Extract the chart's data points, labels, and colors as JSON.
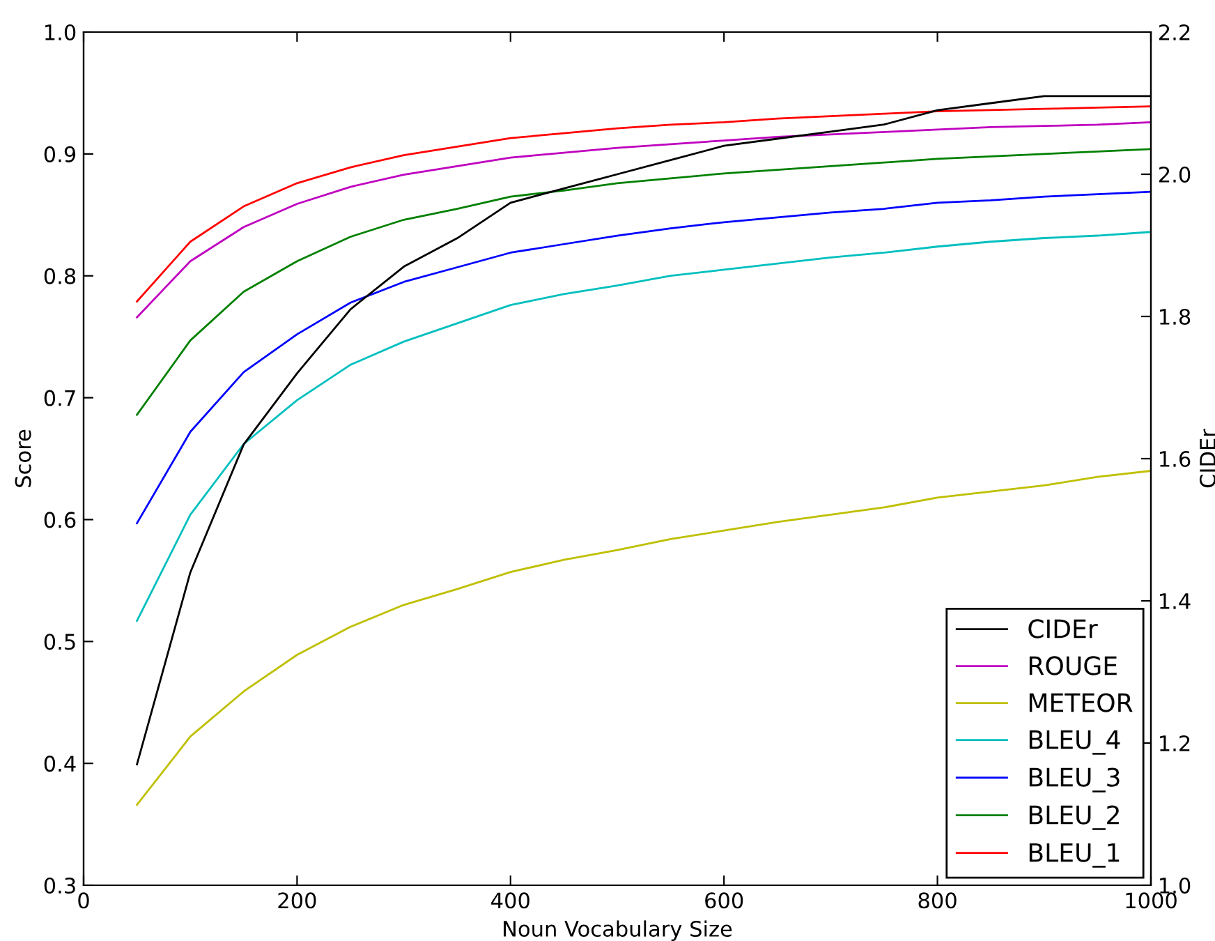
{
  "chart_data": {
    "type": "line",
    "xlabel": "Noun Vocabulary Size",
    "ylabel": "Score",
    "y2label": "CIDEr",
    "x": [
      50,
      100,
      150,
      200,
      250,
      300,
      350,
      400,
      450,
      500,
      550,
      600,
      650,
      700,
      750,
      800,
      850,
      900,
      950,
      1000
    ],
    "series": [
      {
        "name": "CIDEr",
        "color": "#000000",
        "axis": "y2",
        "values": [
          1.17,
          1.44,
          1.62,
          1.72,
          1.81,
          1.87,
          1.91,
          1.96,
          1.98,
          2.0,
          2.02,
          2.04,
          2.05,
          2.06,
          2.07,
          2.09,
          2.1,
          2.11,
          2.11,
          2.11
        ]
      },
      {
        "name": "ROUGE",
        "color": "#bf00bf",
        "values": [
          0.766,
          0.812,
          0.84,
          0.859,
          0.873,
          0.883,
          0.89,
          0.897,
          0.901,
          0.905,
          0.908,
          0.911,
          0.914,
          0.916,
          0.918,
          0.92,
          0.922,
          0.923,
          0.924,
          0.926
        ]
      },
      {
        "name": "METEOR",
        "color": "#bfbf00",
        "values": [
          0.366,
          0.422,
          0.459,
          0.489,
          0.512,
          0.53,
          0.543,
          0.557,
          0.567,
          0.575,
          0.584,
          0.591,
          0.598,
          0.604,
          0.61,
          0.618,
          0.623,
          0.628,
          0.635,
          0.64
        ]
      },
      {
        "name": "BLEU_4",
        "color": "#00bfbf",
        "values": [
          0.517,
          0.604,
          0.662,
          0.698,
          0.727,
          0.746,
          0.761,
          0.776,
          0.785,
          0.792,
          0.8,
          0.805,
          0.81,
          0.815,
          0.819,
          0.824,
          0.828,
          0.831,
          0.833,
          0.836
        ]
      },
      {
        "name": "BLEU_3",
        "color": "#0000ff",
        "values": [
          0.597,
          0.672,
          0.721,
          0.752,
          0.778,
          0.795,
          0.807,
          0.819,
          0.826,
          0.833,
          0.839,
          0.844,
          0.848,
          0.852,
          0.855,
          0.86,
          0.862,
          0.865,
          0.867,
          0.869
        ]
      },
      {
        "name": "BLEU_2",
        "color": "#008000",
        "values": [
          0.686,
          0.747,
          0.787,
          0.812,
          0.832,
          0.846,
          0.855,
          0.865,
          0.87,
          0.876,
          0.88,
          0.884,
          0.887,
          0.89,
          0.893,
          0.896,
          0.898,
          0.9,
          0.902,
          0.904
        ]
      },
      {
        "name": "BLEU_1",
        "color": "#ff0000",
        "values": [
          0.779,
          0.828,
          0.857,
          0.876,
          0.889,
          0.899,
          0.906,
          0.913,
          0.917,
          0.921,
          0.924,
          0.926,
          0.929,
          0.931,
          0.933,
          0.935,
          0.936,
          0.937,
          0.938,
          0.939
        ]
      }
    ],
    "xlim": [
      0,
      1000
    ],
    "xticks": [
      0,
      200,
      400,
      600,
      800,
      1000
    ],
    "ylim": [
      0.3,
      1.0
    ],
    "yticks": [
      0.3,
      0.4,
      0.5,
      0.6,
      0.7,
      0.8,
      0.9,
      {
        "value": 1,
        "label": "1.0"
      }
    ],
    "y2lim": [
      1.0,
      2.2
    ],
    "y2ticks": [
      {
        "value": 1,
        "label": "1.0"
      },
      1.2,
      1.4,
      1.6,
      1.8,
      {
        "value": 2,
        "label": "2.0"
      },
      2.2
    ],
    "grid": false,
    "legend": "bottom right"
  }
}
